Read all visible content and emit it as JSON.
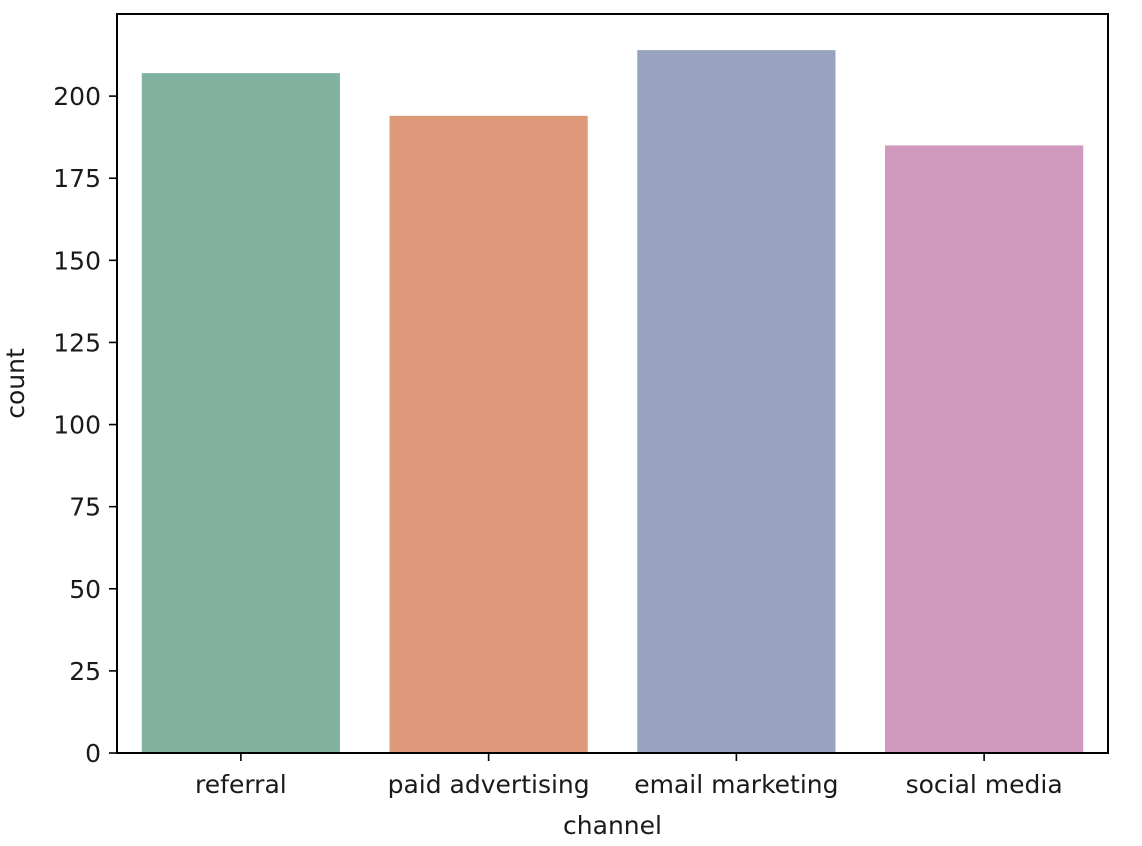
{
  "chart_data": {
    "type": "bar",
    "categories": [
      "referral",
      "paid advertising",
      "email marketing",
      "social media"
    ],
    "values": [
      207,
      194,
      214,
      185
    ],
    "colors": [
      "#81b29f",
      "#dd997a",
      "#98a3bf",
      "#d199be"
    ],
    "xlabel": "channel",
    "ylabel": "count",
    "ylim": [
      0,
      225
    ],
    "yticks": [
      0,
      25,
      50,
      75,
      100,
      125,
      150,
      175,
      200
    ],
    "grid": false,
    "legend": "none"
  }
}
